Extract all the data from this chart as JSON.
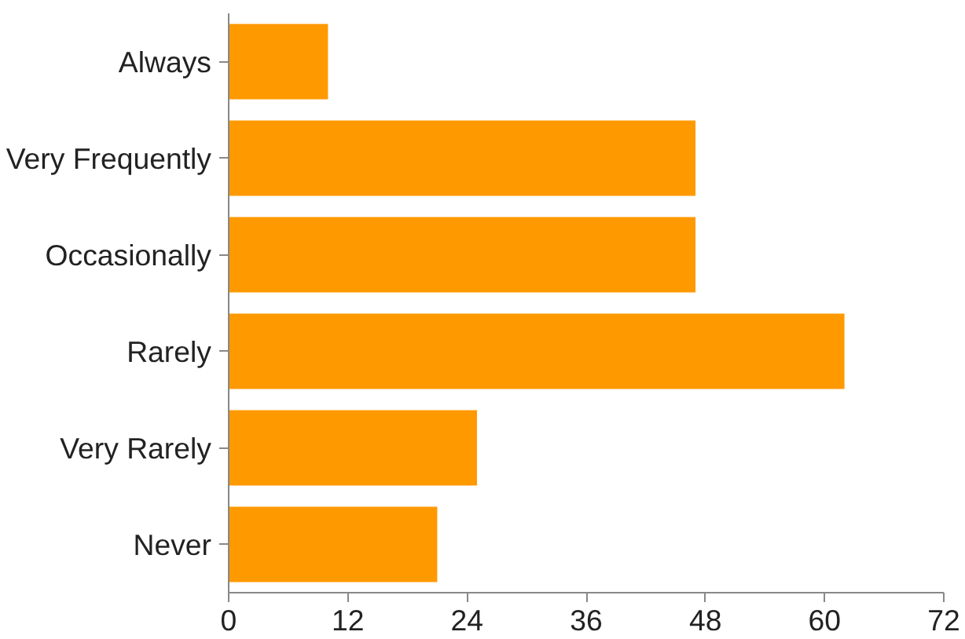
{
  "chart_data": {
    "type": "bar",
    "orientation": "horizontal",
    "categories": [
      "Always",
      "Very Frequently",
      "Occasionally",
      "Rarely",
      "Very Rarely",
      "Never"
    ],
    "values": [
      10,
      47,
      47,
      62,
      25,
      21
    ],
    "color": "#ff9900",
    "xlim": [
      0,
      72
    ],
    "xticks": [
      0,
      12,
      24,
      36,
      48,
      60,
      72
    ],
    "grid": false
  }
}
